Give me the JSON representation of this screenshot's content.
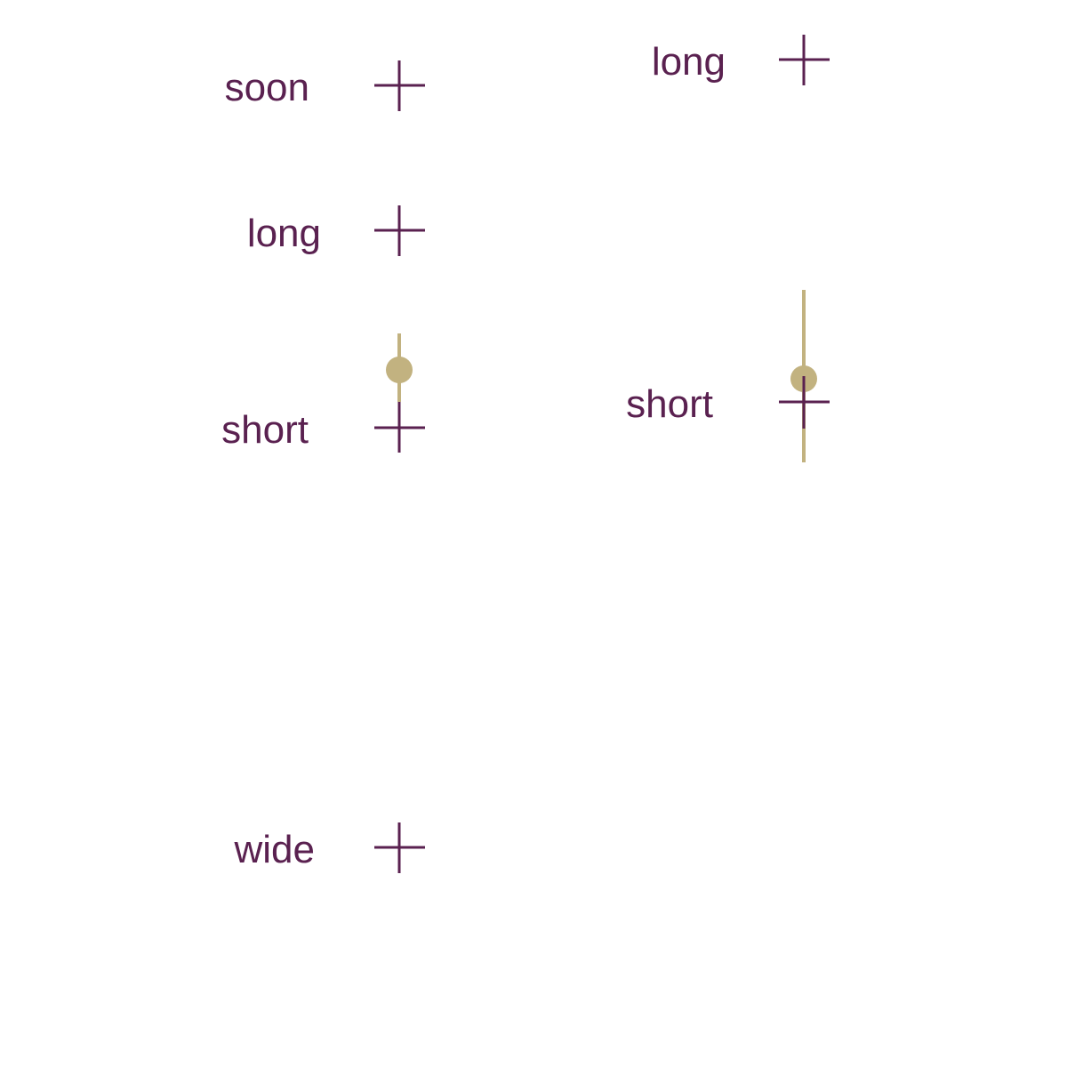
{
  "colors": {
    "ink": "#5a2150",
    "accent": "#c2b280",
    "background": "#ffffff"
  },
  "items": [
    {
      "label": "soon",
      "marker": "plus-icon",
      "whisker": null
    },
    {
      "label": "long",
      "marker": "plus-icon",
      "whisker": null
    },
    {
      "label": "long",
      "marker": "plus-icon",
      "whisker": null
    },
    {
      "label": "short",
      "marker": "plus-icon",
      "whisker": "dot-whisker"
    },
    {
      "label": "short",
      "marker": "plus-icon",
      "whisker": "dot-whisker"
    },
    {
      "label": "wide",
      "marker": "plus-icon",
      "whisker": null
    }
  ]
}
